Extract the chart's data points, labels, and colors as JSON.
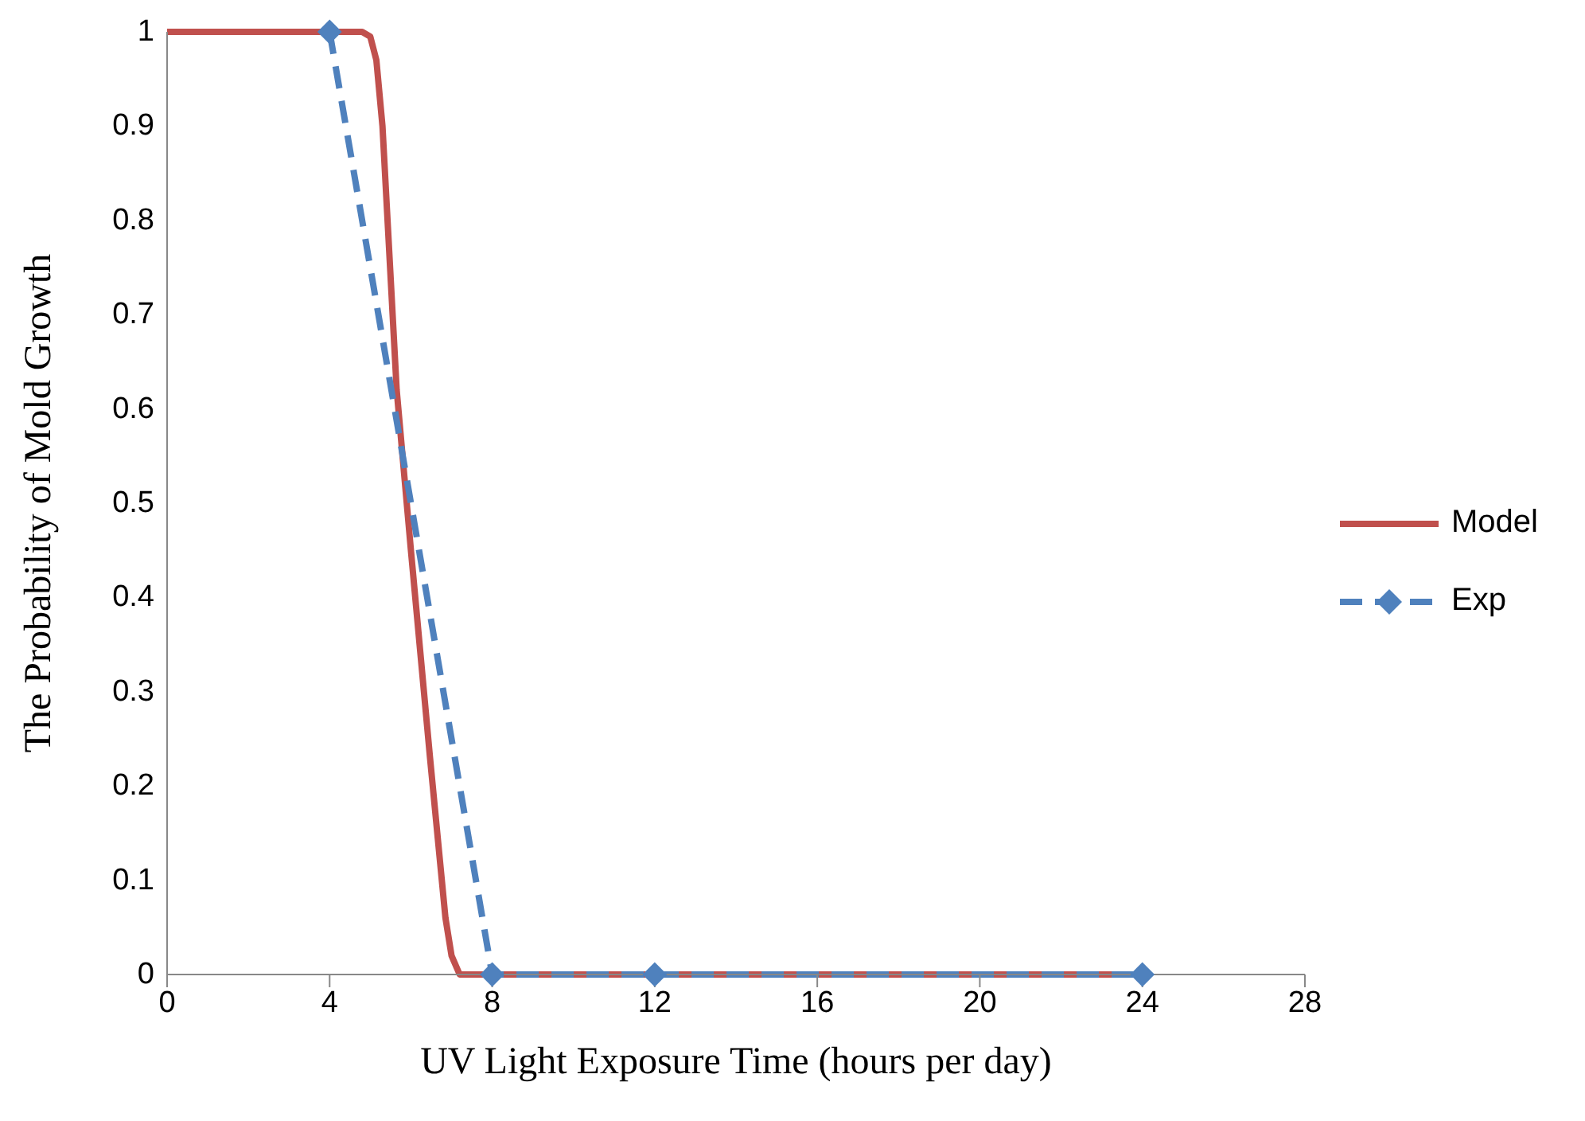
{
  "chart_data": {
    "type": "line",
    "xlabel": "UV Light Exposure Time (hours per day)",
    "ylabel": "The Probability of Mold Growth",
    "xlim": [
      0,
      28
    ],
    "xticks": [
      0,
      4,
      8,
      12,
      16,
      20,
      24,
      28
    ],
    "ylim": [
      0,
      1
    ],
    "yticks": [
      0,
      0.1,
      0.2,
      0.3,
      0.4,
      0.5,
      0.6,
      0.7,
      0.8,
      0.9,
      1
    ],
    "grid": false,
    "legend": "right",
    "series": [
      {
        "name": "Model",
        "color": "#c0504d",
        "line_style": "solid",
        "marker": "none",
        "x": [
          0,
          4.8,
          5.0,
          5.15,
          5.3,
          5.65,
          6.0,
          6.47,
          6.85,
          7.0,
          7.2,
          7.4,
          24
        ],
        "values": [
          1,
          1,
          0.995,
          0.97,
          0.9,
          0.62,
          0.45,
          0.23,
          0.06,
          0.02,
          0,
          0,
          0
        ]
      },
      {
        "name": "Exp",
        "color": "#4f81bd",
        "line_style": "dashed",
        "marker": "diamond",
        "x": [
          4,
          8,
          12,
          24
        ],
        "values": [
          1,
          0,
          0,
          0
        ]
      }
    ]
  }
}
